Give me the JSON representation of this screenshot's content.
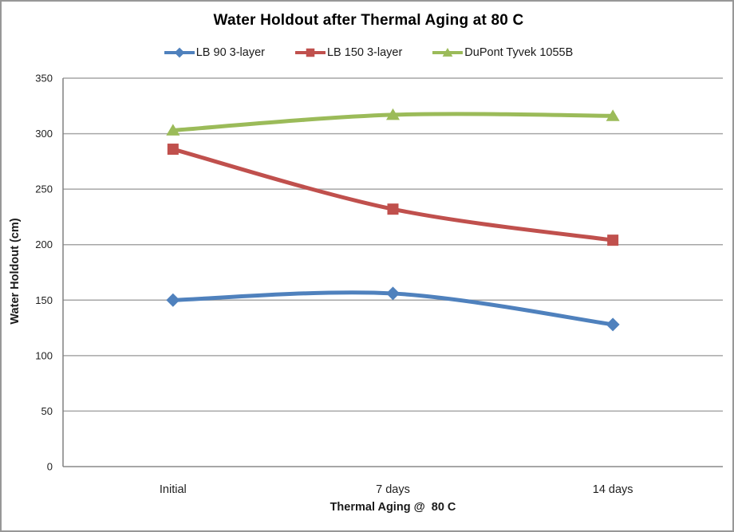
{
  "chart_data": {
    "type": "line",
    "title": "Water Holdout after Thermal Aging at 80 C",
    "categories": [
      "Initial",
      "7 days",
      "14 days"
    ],
    "series": [
      {
        "name": "LB 90 3-layer",
        "marker": "diamond",
        "color": "#4F81BD",
        "values": [
          150,
          156,
          128
        ]
      },
      {
        "name": "LB 150 3-layer",
        "marker": "square",
        "color": "#C0504D",
        "values": [
          286,
          232,
          204
        ]
      },
      {
        "name": "DuPont Tyvek 1055B",
        "marker": "triangle",
        "color": "#9BBB59",
        "values": [
          303,
          317,
          316
        ]
      }
    ],
    "xlabel": "Thermal Aging @  80 C",
    "ylabel": "Water Holdout (cm)",
    "ylim": [
      0,
      350
    ],
    "ytick_step": 50,
    "grid": "horizontal-only",
    "legend_position": "top",
    "smoothed_lines": true,
    "colors": {
      "gridline": "#A6A6A6",
      "axis_line": "#808080",
      "tick_text": "#1f1f1f",
      "border": "#979797",
      "background": "#FFFFFF"
    }
  }
}
